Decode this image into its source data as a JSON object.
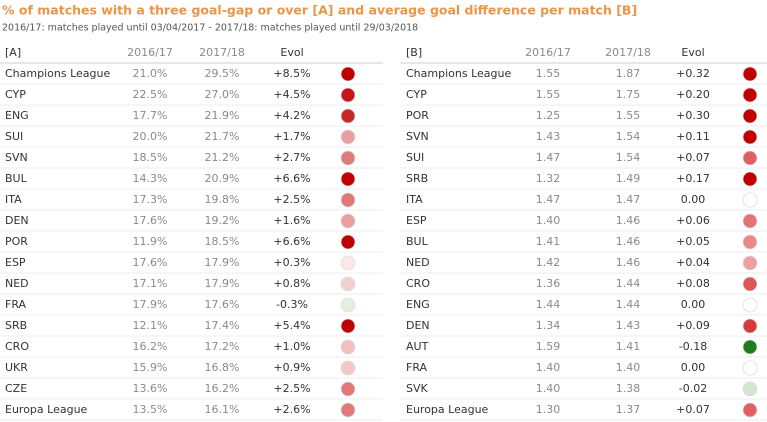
{
  "title": "% of matches with a three goal-gap or over [A] and average goal difference per match [B]",
  "subtitle": "2016/17: matches played until 03/04/2017 - 2017/18: matches played until 29/03/2018",
  "tables": [
    {
      "header": [
        "[A]",
        "2016/17",
        "2017/18",
        "Evol"
      ],
      "rows": [
        {
          "cells": [
            "Champions League",
            "21.0%",
            "29.5%",
            "+8.5%"
          ],
          "color": "#c00000"
        },
        {
          "cells": [
            "CYP",
            "22.5%",
            "27.0%",
            "+4.5%"
          ],
          "color": "#c4161c"
        },
        {
          "cells": [
            "ENG",
            "17.7%",
            "21.9%",
            "+4.2%"
          ],
          "color": "#c62828"
        },
        {
          "cells": [
            "SUI",
            "20.0%",
            "21.7%",
            "+1.7%"
          ],
          "color": "#e8a0a0"
        },
        {
          "cells": [
            "SVN",
            "18.5%",
            "21.2%",
            "+2.7%"
          ],
          "color": "#e07a7a"
        },
        {
          "cells": [
            "BUL",
            "14.3%",
            "20.9%",
            "+6.6%"
          ],
          "color": "#c00000"
        },
        {
          "cells": [
            "ITA",
            "17.3%",
            "19.8%",
            "+2.5%"
          ],
          "color": "#e07a7a"
        },
        {
          "cells": [
            "DEN",
            "17.6%",
            "19.2%",
            "+1.6%"
          ],
          "color": "#e8a0a0"
        },
        {
          "cells": [
            "POR",
            "11.9%",
            "18.5%",
            "+6.6%"
          ],
          "color": "#c00000"
        },
        {
          "cells": [
            "ESP",
            "17.6%",
            "17.9%",
            "+0.3%"
          ],
          "color": "#fbe9e9"
        },
        {
          "cells": [
            "NED",
            "17.1%",
            "17.9%",
            "+0.8%"
          ],
          "color": "#f4cfcf"
        },
        {
          "cells": [
            "FRA",
            "17.9%",
            "17.6%",
            "-0.3%"
          ],
          "color": "#e5f0e2"
        },
        {
          "cells": [
            "SRB",
            "12.1%",
            "17.4%",
            "+5.4%"
          ],
          "color": "#c00000"
        },
        {
          "cells": [
            "CRO",
            "16.2%",
            "17.2%",
            "+1.0%"
          ],
          "color": "#f0c0c0"
        },
        {
          "cells": [
            "UKR",
            "15.9%",
            "16.8%",
            "+0.9%"
          ],
          "color": "#f2c8c8"
        },
        {
          "cells": [
            "CZE",
            "13.6%",
            "16.2%",
            "+2.5%"
          ],
          "color": "#e07a7a"
        },
        {
          "cells": [
            "Europa League",
            "13.5%",
            "16.1%",
            "+2.6%"
          ],
          "color": "#e07a7a"
        }
      ]
    },
    {
      "header": [
        "[B]",
        "2016/17",
        "2017/18",
        "Evol"
      ],
      "rows": [
        {
          "cells": [
            "Champions League",
            "1.55",
            "1.87",
            "+0.32"
          ],
          "color": "#c00000"
        },
        {
          "cells": [
            "CYP",
            "1.55",
            "1.75",
            "+0.20"
          ],
          "color": "#c00000"
        },
        {
          "cells": [
            "POR",
            "1.25",
            "1.55",
            "+0.30"
          ],
          "color": "#c00000"
        },
        {
          "cells": [
            "SVN",
            "1.43",
            "1.54",
            "+0.11"
          ],
          "color": "#c00000"
        },
        {
          "cells": [
            "SUI",
            "1.47",
            "1.54",
            "+0.07"
          ],
          "color": "#e06060"
        },
        {
          "cells": [
            "SRB",
            "1.32",
            "1.49",
            "+0.17"
          ],
          "color": "#c00000"
        },
        {
          "cells": [
            "ITA",
            "1.47",
            "1.47",
            "0.00"
          ],
          "color": "#ffffff"
        },
        {
          "cells": [
            "ESP",
            "1.40",
            "1.46",
            "+0.06"
          ],
          "color": "#e57373"
        },
        {
          "cells": [
            "BUL",
            "1.41",
            "1.46",
            "+0.05"
          ],
          "color": "#e88a8a"
        },
        {
          "cells": [
            "NED",
            "1.42",
            "1.46",
            "+0.04"
          ],
          "color": "#eda0a0"
        },
        {
          "cells": [
            "CRO",
            "1.36",
            "1.44",
            "+0.08"
          ],
          "color": "#dd5555"
        },
        {
          "cells": [
            "ENG",
            "1.44",
            "1.44",
            "0.00"
          ],
          "color": "#ffffff"
        },
        {
          "cells": [
            "DEN",
            "1.34",
            "1.43",
            "+0.09"
          ],
          "color": "#d43a3a"
        },
        {
          "cells": [
            "AUT",
            "1.59",
            "1.41",
            "-0.18"
          ],
          "color": "#1e7d1e"
        },
        {
          "cells": [
            "FRA",
            "1.40",
            "1.40",
            "0.00"
          ],
          "color": "#ffffff"
        },
        {
          "cells": [
            "SVK",
            "1.40",
            "1.38",
            "-0.02"
          ],
          "color": "#d3e6cf"
        },
        {
          "cells": [
            "Europa League",
            "1.30",
            "1.37",
            "+0.07"
          ],
          "color": "#e06060"
        }
      ]
    }
  ]
}
